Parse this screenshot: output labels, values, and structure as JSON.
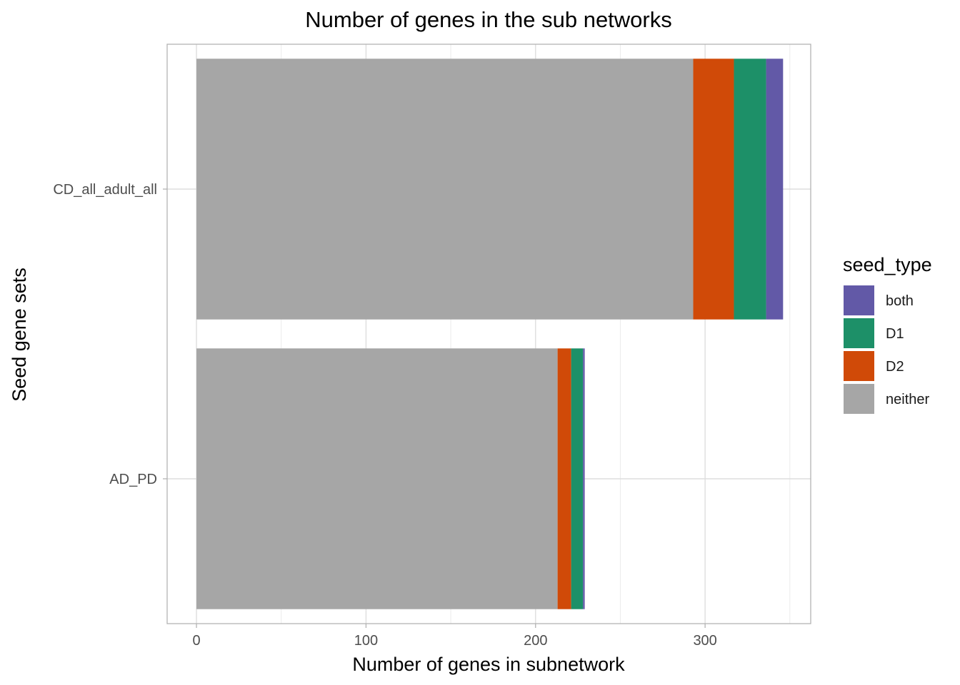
{
  "chart_data": {
    "type": "bar",
    "orientation": "horizontal",
    "stacked": true,
    "title": "Number of genes in the sub networks",
    "xlabel": "Number of genes in subnetwork",
    "ylabel": "Seed gene sets",
    "categories": [
      "CD_all_adult_all",
      "AD_PD"
    ],
    "series": [
      {
        "name": "neither",
        "color": "#A6A6A6",
        "values": [
          293,
          213
        ]
      },
      {
        "name": "D2",
        "color": "#D04A08",
        "values": [
          24,
          8
        ]
      },
      {
        "name": "D1",
        "color": "#1D9068",
        "values": [
          19,
          7
        ]
      },
      {
        "name": "both",
        "color": "#6259A7",
        "values": [
          10,
          1
        ]
      }
    ],
    "x_ticks": [
      0,
      100,
      200,
      300
    ],
    "xlim": [
      -17.3,
      362.3
    ],
    "grid": true,
    "legend": {
      "title": "seed_type",
      "position": "right",
      "entries": [
        "both",
        "D1",
        "D2",
        "neither"
      ]
    }
  }
}
